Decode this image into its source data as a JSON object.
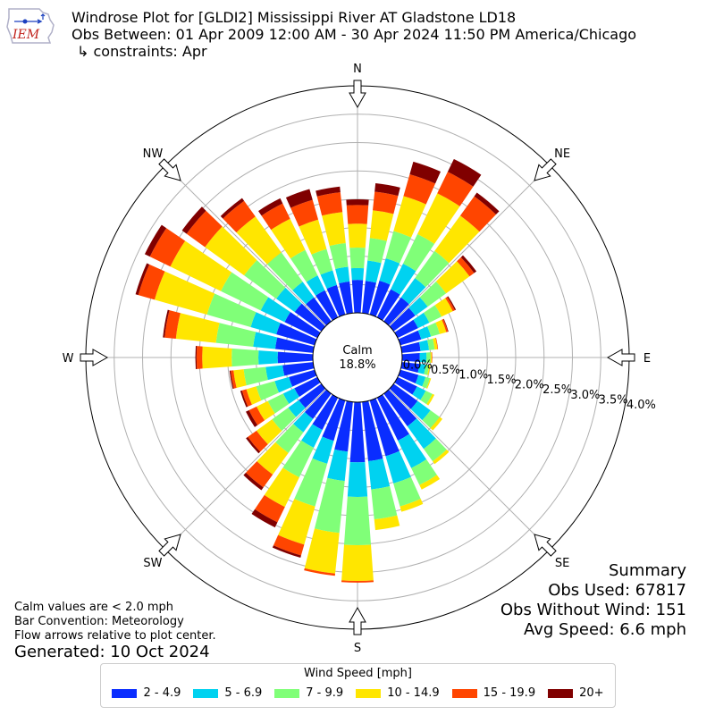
{
  "header": {
    "title": "Windrose Plot for [GLDI2] Mississippi River  AT Gladstone LD18",
    "obs_between": "Obs Between: 01 Apr 2009 12:00 AM - 30 Apr 2024 11:50 PM America/Chicago",
    "constraints": "↳ constraints: Apr",
    "logo_text": "IEM"
  },
  "notes": {
    "calm_note": "Calm values are < 2.0 mph",
    "bar_convention": "Bar Convention: Meteorology",
    "flow_note": "Flow arrows relative to plot center.",
    "generated": "Generated: 10 Oct 2024"
  },
  "summary": {
    "title": "Summary",
    "obs_used": "Obs Used: 67817",
    "obs_without_wind": "Obs Without Wind: 151",
    "avg_speed": "Avg Speed: 6.6 mph"
  },
  "legend": {
    "title": "Wind Speed [mph]",
    "items": [
      {
        "label": "2 - 4.9",
        "color": "#0a2dff"
      },
      {
        "label": "5 - 6.9",
        "color": "#00d2f0"
      },
      {
        "label": "7 - 9.9",
        "color": "#80ff78"
      },
      {
        "label": "10 - 14.9",
        "color": "#ffe600"
      },
      {
        "label": "15 - 19.9",
        "color": "#ff4500"
      },
      {
        "label": "20+",
        "color": "#800000"
      }
    ]
  },
  "chart_data": {
    "type": "windrose",
    "calm_label": "Calm",
    "calm_value": "18.8%",
    "radial_ticks": [
      "0.0%",
      "0.5%",
      "1.0%",
      "1.5%",
      "2.0%",
      "2.5%",
      "3.0%",
      "3.5%",
      "4.0%"
    ],
    "radial_max": 4.0,
    "direction_labels": [
      "N",
      "NE",
      "E",
      "SE",
      "S",
      "SW",
      "W",
      "NW"
    ],
    "direction_angles": [
      0,
      45,
      90,
      135,
      180,
      225,
      270,
      315
    ],
    "sector_width_deg": 10,
    "speed_bins": [
      "2 - 4.9",
      "5 - 6.9",
      "7 - 9.9",
      "10 - 14.9",
      "15 - 19.9",
      "20+"
    ],
    "sectors": [
      {
        "dir": 0,
        "cum": [
          0.58,
          0.79,
          1.15,
          1.57,
          1.9,
          2.0
        ]
      },
      {
        "dir": 10,
        "cum": [
          0.57,
          0.93,
          1.33,
          1.82,
          2.15,
          2.3
        ]
      },
      {
        "dir": 20,
        "cum": [
          0.62,
          1.03,
          1.53,
          2.17,
          2.57,
          2.8
        ]
      },
      {
        "dir": 30,
        "cum": [
          0.55,
          1.05,
          1.63,
          2.43,
          2.85,
          3.1
        ]
      },
      {
        "dir": 40,
        "cum": [
          0.52,
          0.94,
          1.53,
          2.3,
          2.72,
          2.8
        ]
      },
      {
        "dir": 50,
        "cum": [
          0.47,
          0.74,
          1.14,
          1.65,
          1.75,
          1.8
        ]
      },
      {
        "dir": 60,
        "cum": [
          0.4,
          0.62,
          0.86,
          1.08,
          1.12,
          1.14
        ]
      },
      {
        "dir": 70,
        "cum": [
          0.38,
          0.56,
          0.72,
          0.84,
          0.87,
          0.88
        ]
      },
      {
        "dir": 80,
        "cum": [
          0.33,
          0.48,
          0.58,
          0.63,
          0.64,
          0.64
        ]
      },
      {
        "dir": 90,
        "cum": [
          0.31,
          0.43,
          0.5,
          0.52,
          0.53,
          0.53
        ]
      },
      {
        "dir": 100,
        "cum": [
          0.31,
          0.42,
          0.48,
          0.5,
          0.5,
          0.5
        ]
      },
      {
        "dir": 110,
        "cum": [
          0.33,
          0.46,
          0.54,
          0.56,
          0.56,
          0.56
        ]
      },
      {
        "dir": 120,
        "cum": [
          0.38,
          0.55,
          0.68,
          0.72,
          0.72,
          0.72
        ]
      },
      {
        "dir": 130,
        "cum": [
          0.52,
          0.8,
          1.0,
          1.06,
          1.06,
          1.06
        ]
      },
      {
        "dir": 140,
        "cum": [
          0.71,
          1.2,
          1.47,
          1.53,
          1.53,
          1.53
        ]
      },
      {
        "dir": 150,
        "cum": [
          0.84,
          1.38,
          1.71,
          1.8,
          1.8,
          1.8
        ]
      },
      {
        "dir": 160,
        "cum": [
          1.02,
          1.52,
          1.94,
          2.04,
          2.04,
          2.04
        ]
      },
      {
        "dir": 170,
        "cum": [
          1.05,
          1.55,
          2.08,
          2.27,
          2.27,
          2.27
        ]
      },
      {
        "dir": 180,
        "cum": [
          1.06,
          1.67,
          2.52,
          3.15,
          3.18,
          3.18
        ]
      },
      {
        "dir": 190,
        "cum": [
          0.88,
          1.4,
          2.32,
          3.04,
          3.08,
          3.08
        ]
      },
      {
        "dir": 200,
        "cum": [
          0.74,
          1.16,
          1.94,
          2.64,
          2.84,
          2.88
        ]
      },
      {
        "dir": 210,
        "cum": [
          0.63,
          0.98,
          1.56,
          2.14,
          2.44,
          2.54
        ]
      },
      {
        "dir": 220,
        "cum": [
          0.55,
          0.84,
          1.29,
          1.76,
          2.04,
          2.1
        ]
      },
      {
        "dir": 230,
        "cum": [
          0.49,
          0.72,
          1.07,
          1.41,
          1.6,
          1.64
        ]
      },
      {
        "dir": 240,
        "cum": [
          0.45,
          0.67,
          0.97,
          1.19,
          1.34,
          1.4
        ]
      },
      {
        "dir": 250,
        "cum": [
          0.47,
          0.73,
          1.07,
          1.25,
          1.33,
          1.36
        ]
      },
      {
        "dir": 260,
        "cum": [
          0.54,
          0.84,
          1.23,
          1.41,
          1.46,
          1.48
        ]
      },
      {
        "dir": 270,
        "cum": [
          0.62,
          0.96,
          1.43,
          1.95,
          2.05,
          2.07
        ]
      },
      {
        "dir": 280,
        "cum": [
          0.67,
          1.06,
          1.72,
          2.43,
          2.63,
          2.66
        ]
      },
      {
        "dir": 290,
        "cum": [
          0.7,
          1.17,
          1.97,
          2.93,
          3.23,
          3.28
        ]
      },
      {
        "dir": 300,
        "cum": [
          0.64,
          1.11,
          1.89,
          2.88,
          3.28,
          3.38
        ]
      },
      {
        "dir": 310,
        "cum": [
          0.58,
          0.98,
          1.68,
          2.53,
          2.93,
          3.03
        ]
      },
      {
        "dir": 320,
        "cum": [
          0.52,
          0.86,
          1.5,
          2.28,
          2.62,
          2.68
        ]
      },
      {
        "dir": 330,
        "cum": [
          0.53,
          0.82,
          1.32,
          1.93,
          2.23,
          2.33
        ]
      },
      {
        "dir": 340,
        "cum": [
          0.54,
          0.81,
          1.2,
          1.74,
          2.1,
          2.3
        ]
      },
      {
        "dir": 350,
        "cum": [
          0.56,
          0.82,
          1.24,
          1.79,
          2.14,
          2.24
        ]
      }
    ]
  }
}
